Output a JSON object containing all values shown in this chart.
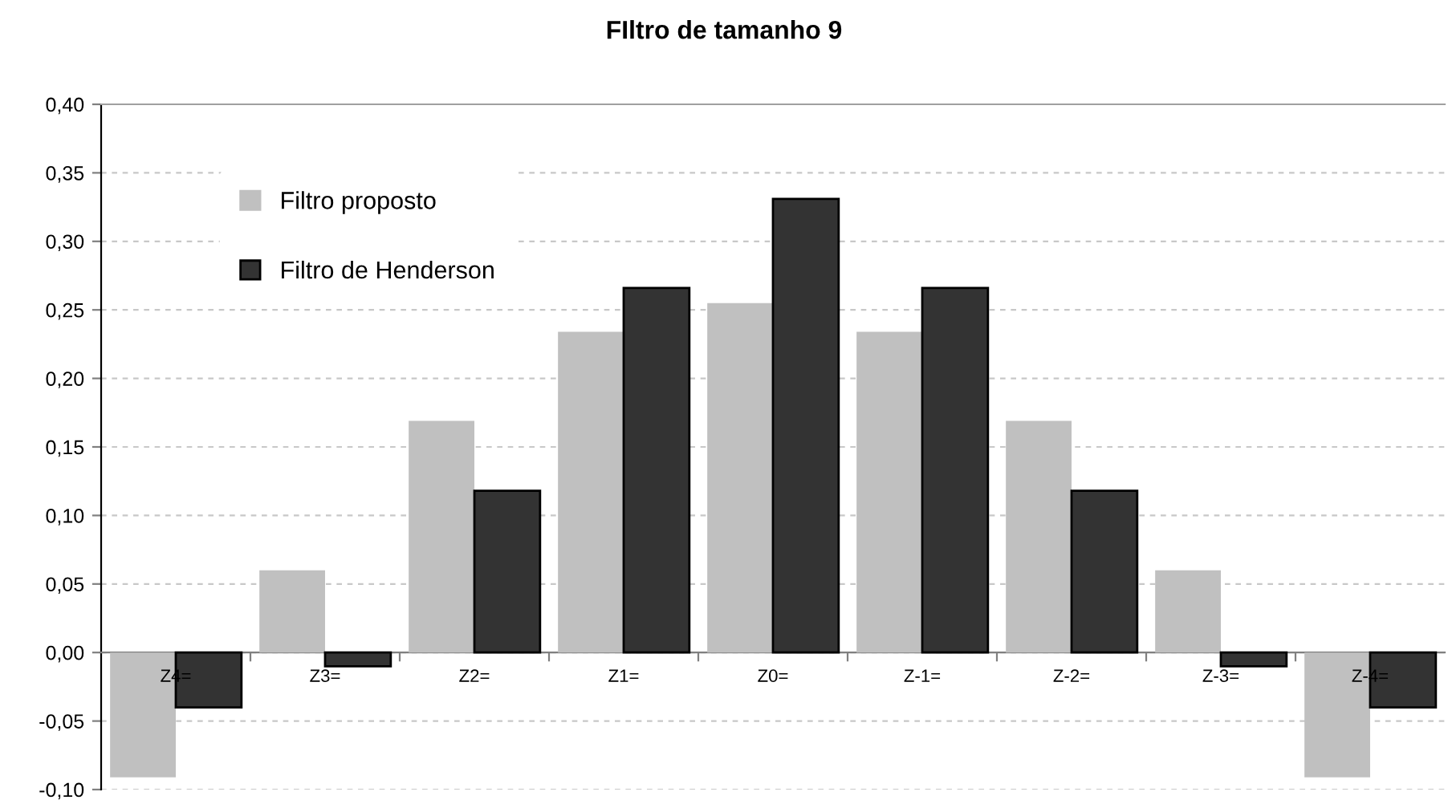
{
  "chart_data": {
    "type": "bar",
    "title": "FIltro de tamanho 9",
    "categories": [
      "Z4=",
      "Z3=",
      "Z2=",
      "Z1=",
      "Z0=",
      "Z-1=",
      "Z-2=",
      "Z-3=",
      "Z-4="
    ],
    "series": [
      {
        "name": "Filtro proposto",
        "color": "#c0c0c0",
        "values": [
          -0.091,
          0.06,
          0.169,
          0.234,
          0.255,
          0.234,
          0.169,
          0.06,
          -0.091
        ]
      },
      {
        "name": "Filtro de Henderson",
        "color": "#333333",
        "values": [
          -0.04,
          -0.01,
          0.118,
          0.266,
          0.331,
          0.266,
          0.118,
          -0.01,
          -0.04
        ]
      }
    ],
    "ylim": [
      -0.1,
      0.4
    ],
    "yticks": [
      {
        "value": -0.1,
        "label": "-0,10"
      },
      {
        "value": -0.05,
        "label": "-0,05"
      },
      {
        "value": 0,
        "label": "0,00"
      },
      {
        "value": 0.05,
        "label": "0,05"
      },
      {
        "value": 0.1,
        "label": "0,10"
      },
      {
        "value": 0.15,
        "label": "0,15"
      },
      {
        "value": 0.2,
        "label": "0,20"
      },
      {
        "value": 0.25,
        "label": "0,25"
      },
      {
        "value": 0.3,
        "label": "0,30"
      },
      {
        "value": 0.35,
        "label": "0,35"
      },
      {
        "value": 0.4,
        "label": "0,40"
      }
    ],
    "grid": "y",
    "legend": "top left"
  }
}
